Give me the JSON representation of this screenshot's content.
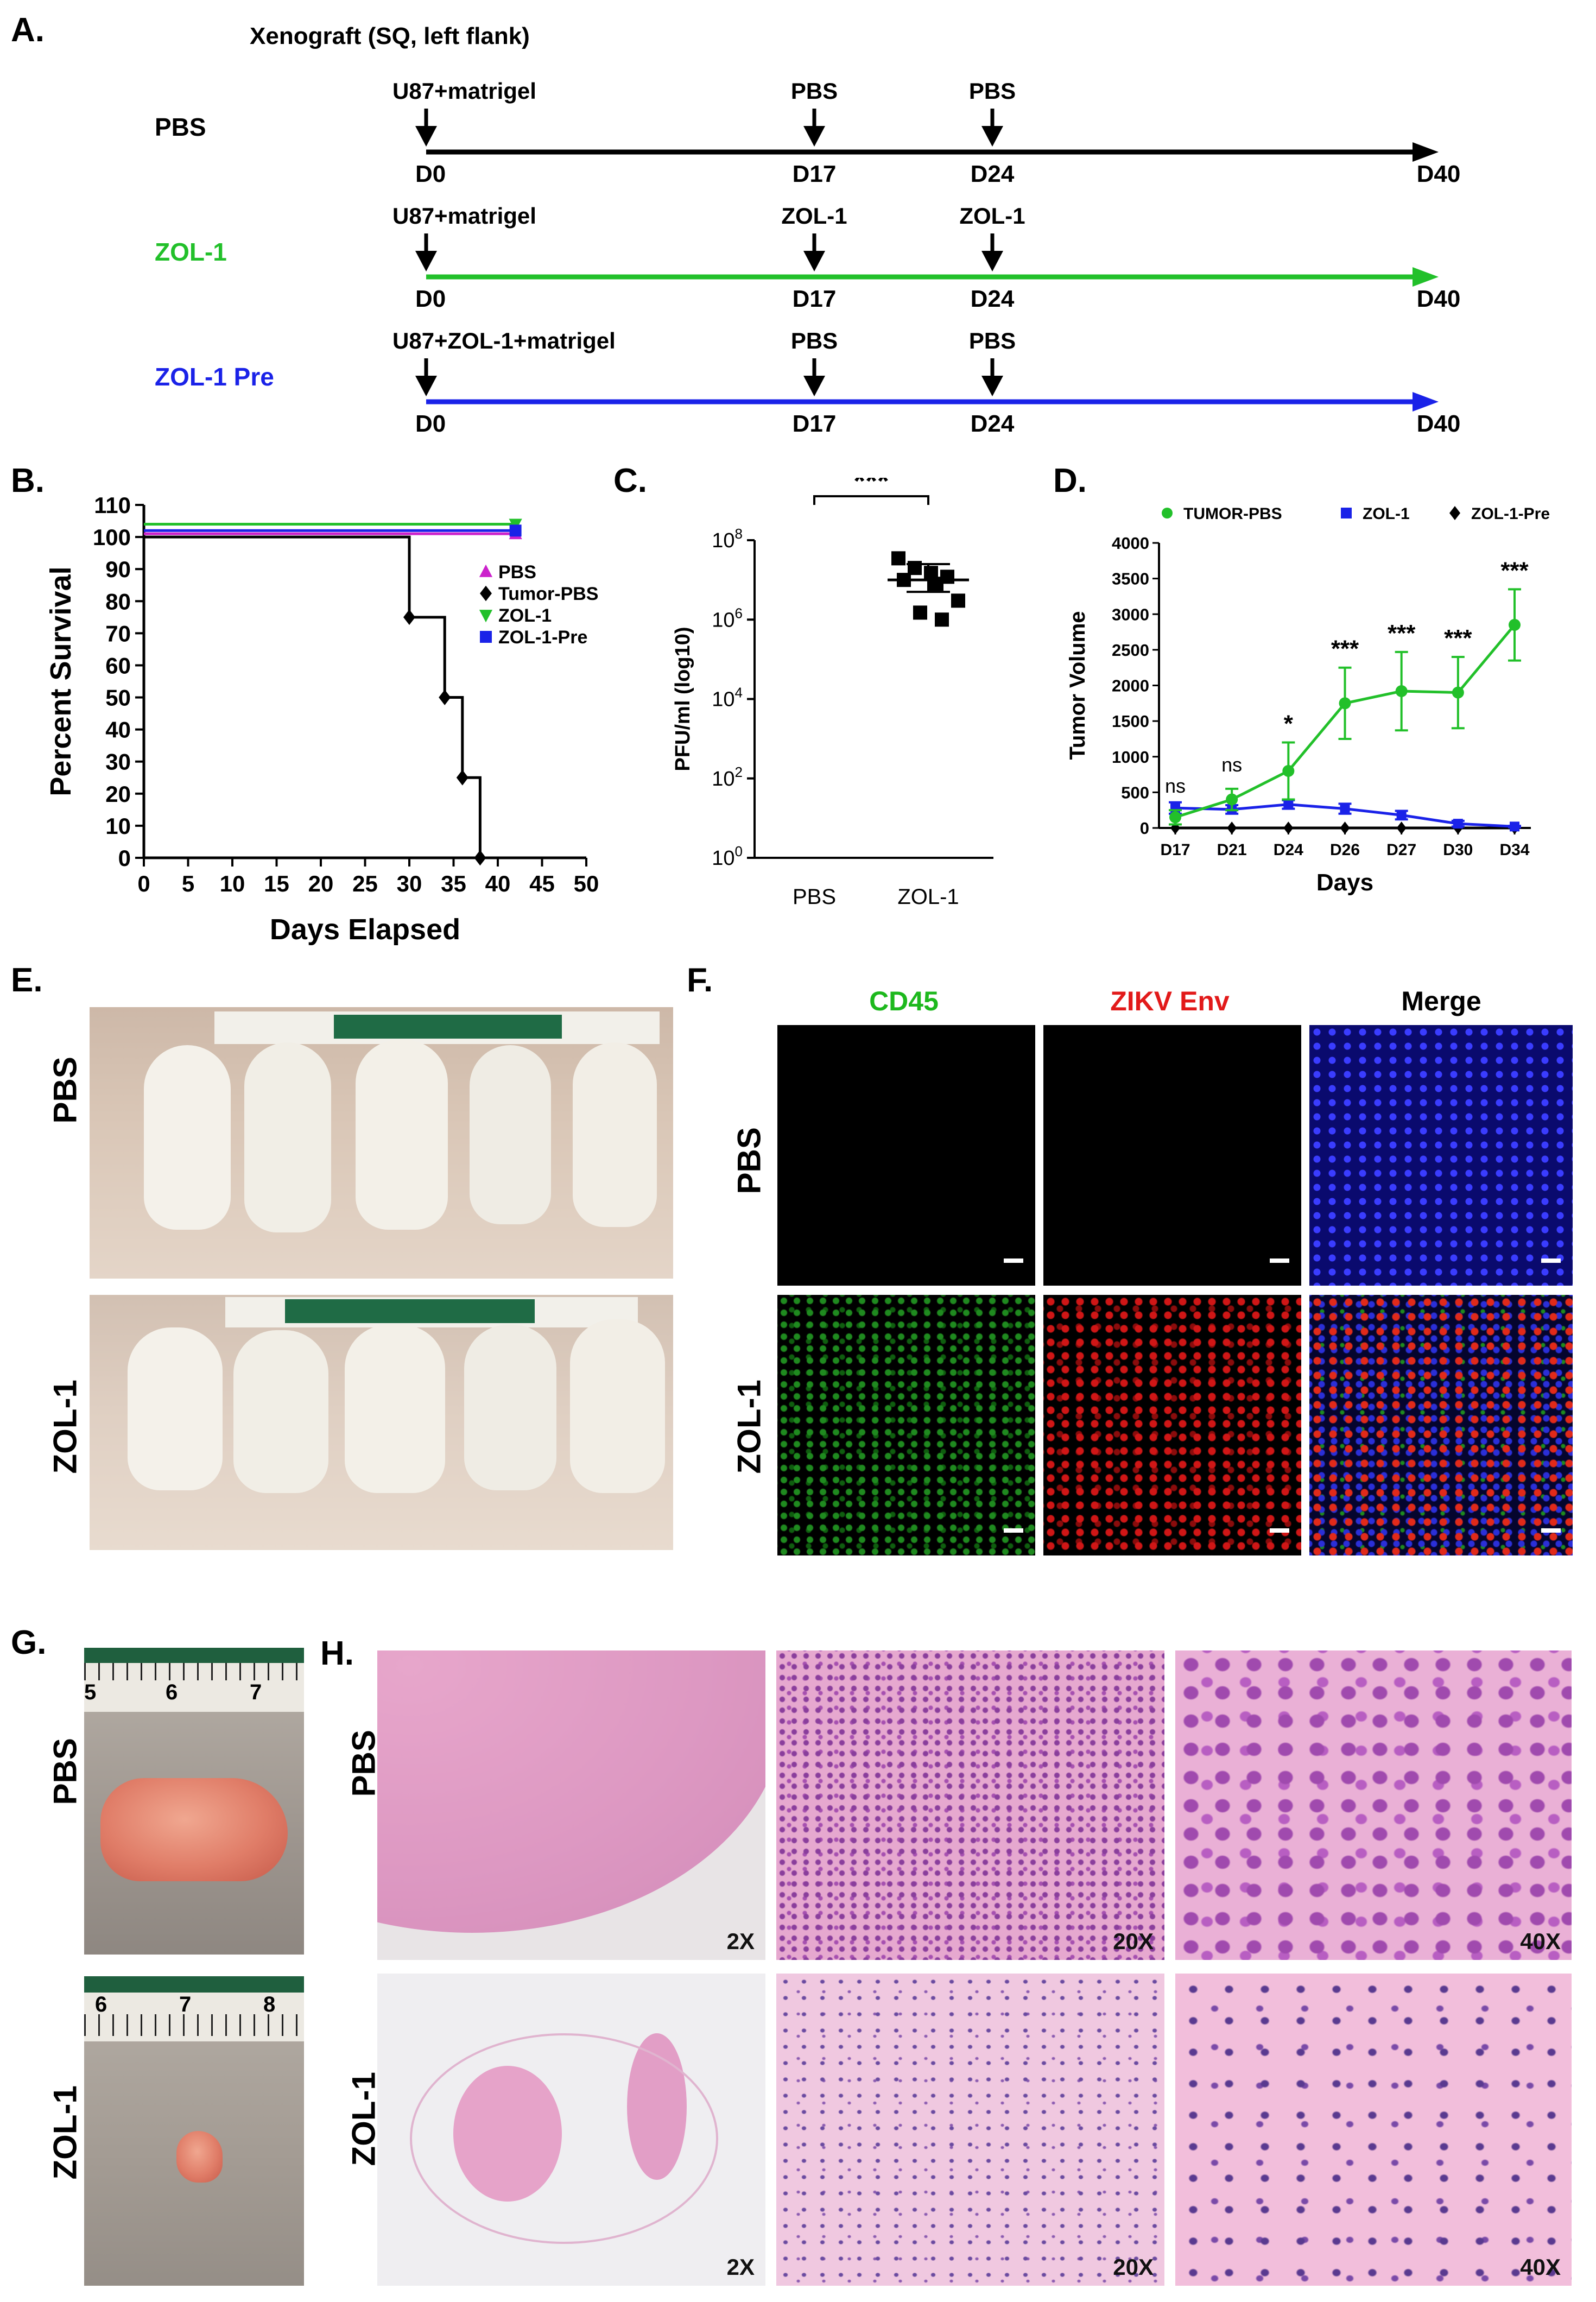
{
  "panels": {
    "a": {
      "letter": "A.",
      "header": "Xenograft (SQ, left flank)",
      "rows": [
        {
          "group": "PBS",
          "color": "#000000",
          "injection": "U87+matrigel",
          "treat1": "PBS",
          "treat2": "PBS"
        },
        {
          "group": "ZOL-1",
          "color": "#22c02a",
          "injection": "U87+matrigel",
          "treat1": "ZOL-1",
          "treat2": "ZOL-1"
        },
        {
          "group": "ZOL-1 Pre",
          "color": "#1a22e8",
          "injection": "U87+ZOL-1+matrigel",
          "treat1": "PBS",
          "treat2": "PBS"
        }
      ],
      "days": [
        "D0",
        "D17",
        "D24",
        "D40"
      ]
    },
    "b": {
      "letter": "B."
    },
    "c": {
      "letter": "C.",
      "significance": "***"
    },
    "d": {
      "letter": "D."
    },
    "e": {
      "letter": "E.",
      "row_labels": [
        "PBS",
        "ZOL-1"
      ]
    },
    "f": {
      "letter": "F.",
      "columns": [
        "CD45",
        "ZIKV Env",
        "Merge"
      ],
      "column_colors": [
        "#1db81d",
        "#e21a1a",
        "#000000"
      ],
      "row_labels": [
        "PBS",
        "ZOL-1"
      ]
    },
    "g": {
      "letter": "G.",
      "row_labels": [
        "PBS",
        "ZOL-1"
      ],
      "ruler_pbs": [
        "5",
        "6",
        "7"
      ],
      "ruler_zol": [
        "6",
        "7",
        "8"
      ]
    },
    "h": {
      "letter": "H.",
      "row_labels": [
        "PBS",
        "ZOL-1"
      ],
      "magnifications": [
        "2X",
        "20X",
        "40X"
      ]
    }
  },
  "chart_data": [
    {
      "panel": "B",
      "type": "line",
      "subtype": "kaplan-meier step",
      "xlabel": "Days Elapsed",
      "ylabel": "Percent Survival",
      "xlim": [
        0,
        50
      ],
      "ylim": [
        0,
        110
      ],
      "xticks": [
        0,
        5,
        10,
        15,
        20,
        25,
        30,
        35,
        40,
        45,
        50
      ],
      "yticks": [
        0,
        10,
        20,
        30,
        40,
        50,
        60,
        70,
        80,
        90,
        100,
        110
      ],
      "legend_position": "right",
      "series": [
        {
          "name": "PBS",
          "color": "#cc22cc",
          "marker": "triangle-up",
          "x": [
            0,
            42
          ],
          "y": [
            101,
            101
          ]
        },
        {
          "name": "Tumor-PBS",
          "color": "#000000",
          "marker": "diamond",
          "x": [
            0,
            30,
            34,
            36,
            38
          ],
          "y": [
            100,
            75,
            50,
            25,
            0
          ]
        },
        {
          "name": "ZOL-1",
          "color": "#22c02a",
          "marker": "triangle-down",
          "x": [
            0,
            42
          ],
          "y": [
            104,
            104
          ]
        },
        {
          "name": "ZOL-1-Pre",
          "color": "#1a22e8",
          "marker": "square",
          "x": [
            0,
            42
          ],
          "y": [
            102,
            102
          ]
        }
      ]
    },
    {
      "panel": "C",
      "type": "scatter",
      "subtype": "dot plot with mean and SEM",
      "ylabel": "PFU/ml (log10)",
      "categories": [
        "PBS",
        "ZOL-1"
      ],
      "yscale": "log",
      "ylim": [
        1,
        100000000
      ],
      "ytick_labels": [
        "10^0",
        "10^2",
        "10^4",
        "10^6",
        "10^8"
      ],
      "series": [
        {
          "name": "ZOL-1",
          "values": [
            35000000,
            20000000,
            15000000,
            12000000,
            10000000,
            8000000,
            3000000,
            1500000,
            1000000
          ],
          "mean": 10000000,
          "sem_high": 25000000,
          "sem_low": 5000000
        }
      ],
      "significance": "***"
    },
    {
      "panel": "D",
      "type": "line",
      "xlabel": "Days",
      "ylabel": "Tumor Volume",
      "categories": [
        "D17",
        "D21",
        "D24",
        "D26",
        "D27",
        "D30",
        "D34"
      ],
      "ylim": [
        0,
        4000
      ],
      "yticks": [
        0,
        500,
        1000,
        1500,
        2000,
        2500,
        3000,
        3500,
        4000
      ],
      "legend_position": "top",
      "series": [
        {
          "name": "TUMOR-PBS",
          "color": "#22c02a",
          "marker": "circle",
          "values": [
            150,
            400,
            800,
            1750,
            1920,
            1900,
            2850
          ],
          "error": [
            100,
            150,
            400,
            500,
            550,
            500,
            500
          ]
        },
        {
          "name": "ZOL-1",
          "color": "#1a22e8",
          "marker": "square",
          "values": [
            280,
            260,
            330,
            270,
            180,
            60,
            20
          ],
          "error": [
            80,
            60,
            60,
            70,
            60,
            40,
            10
          ]
        },
        {
          "name": "ZOL-1-Pre",
          "color": "#000000",
          "marker": "diamond",
          "values": [
            0,
            0,
            0,
            0,
            0,
            0,
            0
          ]
        }
      ],
      "annotations": [
        "ns",
        "ns",
        "*",
        "***",
        "***",
        "***",
        "***"
      ]
    }
  ]
}
